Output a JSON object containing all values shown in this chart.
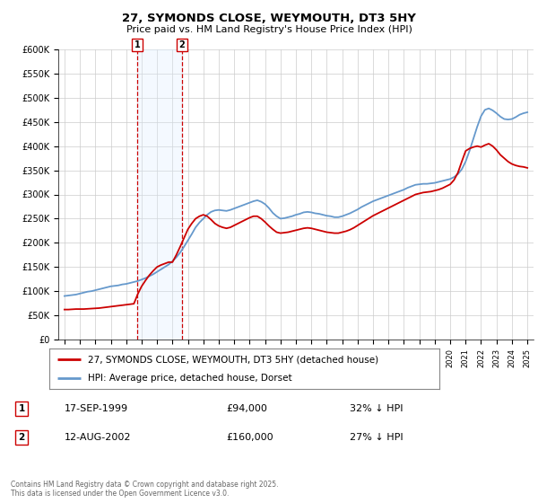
{
  "title": "27, SYMONDS CLOSE, WEYMOUTH, DT3 5HY",
  "subtitle": "Price paid vs. HM Land Registry's House Price Index (HPI)",
  "legend_line1": "27, SYMONDS CLOSE, WEYMOUTH, DT3 5HY (detached house)",
  "legend_line2": "HPI: Average price, detached house, Dorset",
  "purchase1_date": "17-SEP-1999",
  "purchase1_price": 94000,
  "purchase1_label": "32% ↓ HPI",
  "purchase1_year": 1999.71,
  "purchase2_date": "12-AUG-2002",
  "purchase2_price": 160000,
  "purchase2_label": "27% ↓ HPI",
  "purchase2_year": 2002.61,
  "footer": "Contains HM Land Registry data © Crown copyright and database right 2025.\nThis data is licensed under the Open Government Licence v3.0.",
  "red_color": "#cc0000",
  "blue_color": "#6699cc",
  "shade_color": "#ddeeff",
  "marker_color": "#cc0000",
  "ylim_max": 600000,
  "yticks": [
    0,
    50000,
    100000,
    150000,
    200000,
    250000,
    300000,
    350000,
    400000,
    450000,
    500000,
    550000,
    600000
  ],
  "xlim_start": 1994.6,
  "xlim_end": 2025.4,
  "background_color": "#ffffff",
  "grid_color": "#cccccc",
  "years_hpi": [
    1995,
    1995.25,
    1995.5,
    1995.75,
    1996,
    1996.25,
    1996.5,
    1996.75,
    1997,
    1997.25,
    1997.5,
    1997.75,
    1998,
    1998.25,
    1998.5,
    1998.75,
    1999,
    1999.25,
    1999.5,
    1999.75,
    2000,
    2000.25,
    2000.5,
    2000.75,
    2001,
    2001.25,
    2001.5,
    2001.75,
    2002,
    2002.25,
    2002.5,
    2002.75,
    2003,
    2003.25,
    2003.5,
    2003.75,
    2004,
    2004.25,
    2004.5,
    2004.75,
    2005,
    2005.25,
    2005.5,
    2005.75,
    2006,
    2006.25,
    2006.5,
    2006.75,
    2007,
    2007.25,
    2007.5,
    2007.75,
    2008,
    2008.25,
    2008.5,
    2008.75,
    2009,
    2009.25,
    2009.5,
    2009.75,
    2010,
    2010.25,
    2010.5,
    2010.75,
    2011,
    2011.25,
    2011.5,
    2011.75,
    2012,
    2012.25,
    2012.5,
    2012.75,
    2013,
    2013.25,
    2013.5,
    2013.75,
    2014,
    2014.25,
    2014.5,
    2014.75,
    2015,
    2015.25,
    2015.5,
    2015.75,
    2016,
    2016.25,
    2016.5,
    2016.75,
    2017,
    2017.25,
    2017.5,
    2017.75,
    2018,
    2018.25,
    2018.5,
    2018.75,
    2019,
    2019.25,
    2019.5,
    2019.75,
    2020,
    2020.25,
    2020.5,
    2020.75,
    2021,
    2021.25,
    2021.5,
    2021.75,
    2022,
    2022.25,
    2022.5,
    2022.75,
    2023,
    2023.25,
    2023.5,
    2023.75,
    2024,
    2024.25,
    2024.5,
    2024.75,
    2025
  ],
  "hpi_values": [
    90000,
    91000,
    92000,
    93000,
    95000,
    97000,
    99000,
    100000,
    102000,
    104000,
    106000,
    108000,
    110000,
    111000,
    112000,
    114000,
    115000,
    117000,
    119000,
    121000,
    124000,
    127000,
    131000,
    135000,
    140000,
    145000,
    150000,
    155000,
    162000,
    170000,
    180000,
    192000,
    205000,
    218000,
    232000,
    242000,
    250000,
    258000,
    264000,
    267000,
    268000,
    267000,
    266000,
    268000,
    271000,
    274000,
    277000,
    280000,
    283000,
    286000,
    288000,
    285000,
    280000,
    272000,
    262000,
    255000,
    250000,
    251000,
    253000,
    255000,
    258000,
    260000,
    263000,
    264000,
    263000,
    261000,
    260000,
    258000,
    256000,
    255000,
    253000,
    253000,
    255000,
    258000,
    261000,
    265000,
    269000,
    274000,
    278000,
    282000,
    286000,
    289000,
    292000,
    295000,
    298000,
    301000,
    304000,
    307000,
    310000,
    314000,
    317000,
    320000,
    321000,
    322000,
    322000,
    323000,
    324000,
    326000,
    328000,
    330000,
    332000,
    336000,
    342000,
    352000,
    368000,
    390000,
    415000,
    440000,
    462000,
    475000,
    478000,
    474000,
    468000,
    461000,
    456000,
    455000,
    456000,
    460000,
    465000,
    468000,
    470000
  ],
  "years_paid": [
    1995,
    1995.25,
    1995.5,
    1995.75,
    1996,
    1996.25,
    1996.5,
    1996.75,
    1997,
    1997.25,
    1997.5,
    1997.75,
    1998,
    1998.25,
    1998.5,
    1998.75,
    1999,
    1999.25,
    1999.5,
    1999.75,
    2000,
    2000.25,
    2000.5,
    2000.75,
    2001,
    2001.25,
    2001.5,
    2001.75,
    2002,
    2002.25,
    2002.5,
    2002.75,
    2003,
    2003.25,
    2003.5,
    2003.75,
    2004,
    2004.25,
    2004.5,
    2004.75,
    2005,
    2005.25,
    2005.5,
    2005.75,
    2006,
    2006.25,
    2006.5,
    2006.75,
    2007,
    2007.25,
    2007.5,
    2007.75,
    2008,
    2008.25,
    2008.5,
    2008.75,
    2009,
    2009.25,
    2009.5,
    2009.75,
    2010,
    2010.25,
    2010.5,
    2010.75,
    2011,
    2011.25,
    2011.5,
    2011.75,
    2012,
    2012.25,
    2012.5,
    2012.75,
    2013,
    2013.25,
    2013.5,
    2013.75,
    2014,
    2014.25,
    2014.5,
    2014.75,
    2015,
    2015.25,
    2015.5,
    2015.75,
    2016,
    2016.25,
    2016.5,
    2016.75,
    2017,
    2017.25,
    2017.5,
    2017.75,
    2018,
    2018.25,
    2018.5,
    2018.75,
    2019,
    2019.25,
    2019.5,
    2019.75,
    2020,
    2020.25,
    2020.5,
    2020.75,
    2021,
    2021.25,
    2021.5,
    2021.75,
    2022,
    2022.25,
    2022.5,
    2022.75,
    2023,
    2023.25,
    2023.5,
    2023.75,
    2024,
    2024.25,
    2024.5,
    2024.75,
    2025
  ],
  "paid_values": [
    62000,
    62000,
    62500,
    63000,
    63000,
    63000,
    63500,
    64000,
    64500,
    65000,
    66000,
    67000,
    68000,
    69000,
    70000,
    71000,
    72000,
    73000,
    74000,
    94000,
    110000,
    122000,
    133000,
    142000,
    150000,
    154000,
    157000,
    160000,
    160000,
    175000,
    192000,
    210000,
    228000,
    240000,
    250000,
    255000,
    258000,
    255000,
    248000,
    240000,
    235000,
    232000,
    230000,
    232000,
    236000,
    240000,
    244000,
    248000,
    252000,
    255000,
    255000,
    250000,
    243000,
    235000,
    228000,
    222000,
    220000,
    221000,
    222000,
    224000,
    226000,
    228000,
    230000,
    231000,
    230000,
    228000,
    226000,
    224000,
    222000,
    221000,
    220000,
    220000,
    222000,
    224000,
    227000,
    231000,
    236000,
    241000,
    246000,
    251000,
    256000,
    260000,
    264000,
    268000,
    272000,
    276000,
    280000,
    284000,
    288000,
    292000,
    296000,
    300000,
    302000,
    304000,
    305000,
    306000,
    308000,
    310000,
    313000,
    317000,
    321000,
    330000,
    345000,
    368000,
    390000,
    395000,
    398000,
    400000,
    398000,
    402000,
    405000,
    400000,
    392000,
    382000,
    375000,
    368000,
    363000,
    360000,
    358000,
    357000,
    355000
  ]
}
